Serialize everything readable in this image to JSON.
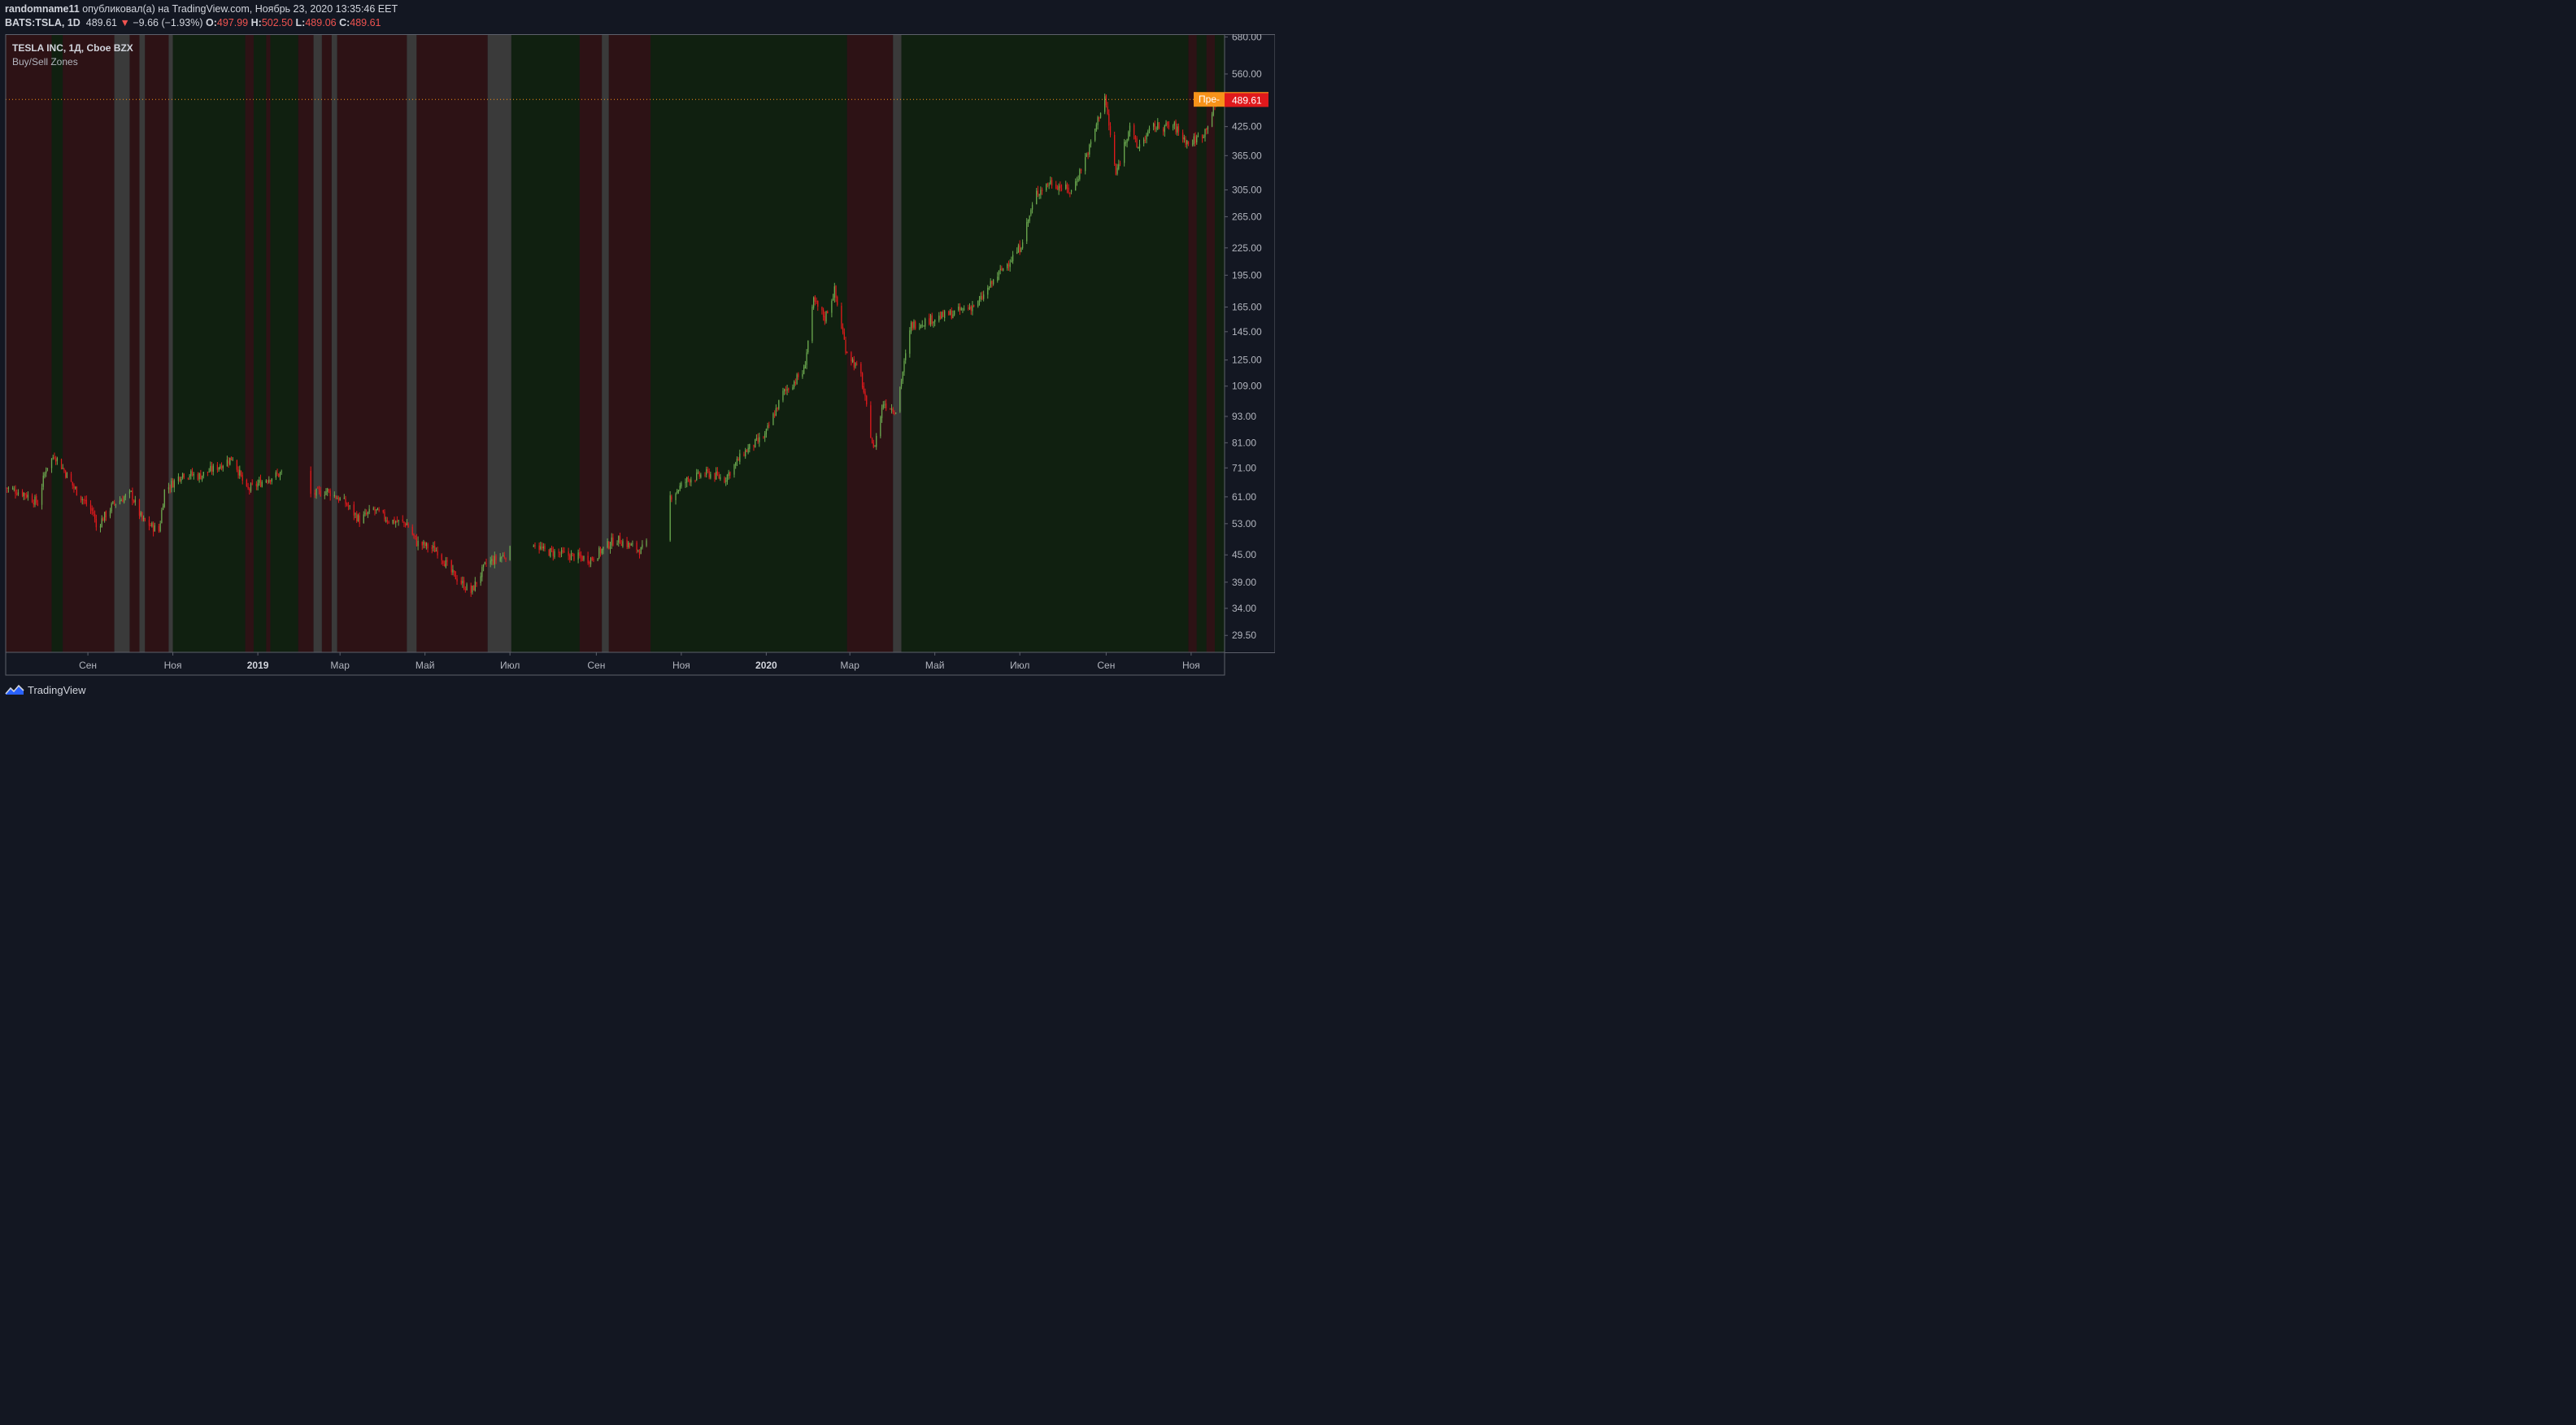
{
  "header": {
    "user": "randomname11",
    "publish_text": " опубликовал(а) на TradingView.com, Ноябрь 23, 2020 13:35:46 EET",
    "symbol": "BATS:TSLA, 1D",
    "last": "489.61",
    "change_arrow": "▼",
    "change": "−9.66 (−1.93%)",
    "o_label": "O:",
    "o_value": "497.99",
    "h_label": "H:",
    "h_value": "502.50",
    "l_label": "L:",
    "l_value": "489.06",
    "c_label": "C:",
    "c_value": "489.61"
  },
  "legend": {
    "title": "TESLA INC, 1Д, Cboe BZX",
    "indicator": "Buy/Sell Zones"
  },
  "footer": {
    "brand": "TradingView"
  },
  "colors": {
    "background": "#131722",
    "up": "#6aa84f",
    "down": "#e0191c",
    "zone_buy": "#102010",
    "zone_sell": "#2d1215",
    "zone_neutral": "#3a3a3a",
    "last_price": "#e0191c",
    "prev_close": "#f7931a",
    "axis_text": "#b2b5be"
  },
  "chart_data": {
    "type": "candlestick",
    "title": "TESLA INC, 1Д, Cboe BZX",
    "y_scale": "log",
    "ylim": [
      27,
      690
    ],
    "x_range": [
      "2018-07-04",
      "2020-11-25"
    ],
    "y_ticks": [
      "680.00",
      "560.00",
      "425.00",
      "365.00",
      "305.00",
      "265.00",
      "225.00",
      "195.00",
      "165.00",
      "145.00",
      "125.00",
      "109.00",
      "93.00",
      "81.00",
      "71.00",
      "61.00",
      "53.00",
      "45.00",
      "39.00",
      "34.00",
      "29.50"
    ],
    "x_ticks": [
      {
        "label": "Сен",
        "date": "2018-09-01",
        "bold": false
      },
      {
        "label": "Ноя",
        "date": "2018-11-01",
        "bold": false
      },
      {
        "label": "2019",
        "date": "2019-01-01",
        "bold": true
      },
      {
        "label": "Мар",
        "date": "2019-03-01",
        "bold": false
      },
      {
        "label": "Май",
        "date": "2019-05-01",
        "bold": false
      },
      {
        "label": "Июл",
        "date": "2019-07-01",
        "bold": false
      },
      {
        "label": "Сен",
        "date": "2019-09-01",
        "bold": false
      },
      {
        "label": "Ноя",
        "date": "2019-11-01",
        "bold": false
      },
      {
        "label": "2020",
        "date": "2020-01-01",
        "bold": true
      },
      {
        "label": "Мар",
        "date": "2020-03-01",
        "bold": false
      },
      {
        "label": "Май",
        "date": "2020-05-01",
        "bold": false
      },
      {
        "label": "Июл",
        "date": "2020-07-01",
        "bold": false
      },
      {
        "label": "Сен",
        "date": "2020-09-01",
        "bold": false
      },
      {
        "label": "Ноя",
        "date": "2020-11-01",
        "bold": false
      }
    ],
    "price_path": [
      [
        "2018-07-04",
        64
      ],
      [
        "2018-07-18",
        62
      ],
      [
        "2018-07-27",
        59
      ],
      [
        "2018-08-02",
        71
      ],
      [
        "2018-08-08",
        76
      ],
      [
        "2018-08-15",
        70
      ],
      [
        "2018-08-22",
        64
      ],
      [
        "2018-09-05",
        56
      ],
      [
        "2018-09-07",
        52
      ],
      [
        "2018-09-20",
        59
      ],
      [
        "2018-10-02",
        62
      ],
      [
        "2018-10-10",
        54
      ],
      [
        "2018-10-22",
        51
      ],
      [
        "2018-10-26",
        63
      ],
      [
        "2018-11-08",
        69
      ],
      [
        "2018-11-20",
        68
      ],
      [
        "2018-12-05",
        72
      ],
      [
        "2018-12-14",
        75
      ],
      [
        "2018-12-24",
        63
      ],
      [
        "2019-01-07",
        67
      ],
      [
        "2019-01-18",
        69
      ],
      [
        "2019-01-22",
        63
      ],
      [
        "2019-02-01",
        61
      ],
      [
        "2019-02-20",
        63
      ],
      [
        "2019-03-05",
        59
      ],
      [
        "2019-03-15",
        54
      ],
      [
        "2019-03-25",
        57
      ],
      [
        "2019-04-05",
        54
      ],
      [
        "2019-04-18",
        53
      ],
      [
        "2019-04-25",
        48
      ],
      [
        "2019-05-10",
        46
      ],
      [
        "2019-05-20",
        41
      ],
      [
        "2019-06-03",
        37
      ],
      [
        "2019-06-14",
        43
      ],
      [
        "2019-06-28",
        45
      ],
      [
        "2019-07-12",
        50
      ],
      [
        "2019-07-25",
        46
      ],
      [
        "2019-08-10",
        45
      ],
      [
        "2019-08-28",
        44
      ],
      [
        "2019-09-15",
        49
      ],
      [
        "2019-10-03",
        46
      ],
      [
        "2019-10-18",
        52
      ],
      [
        "2019-10-24",
        61
      ],
      [
        "2019-11-06",
        67
      ],
      [
        "2019-11-20",
        69
      ],
      [
        "2019-12-02",
        67
      ],
      [
        "2019-12-16",
        77
      ],
      [
        "2019-12-31",
        84
      ],
      [
        "2020-01-13",
        105
      ],
      [
        "2020-01-28",
        118
      ],
      [
        "2020-02-04",
        170
      ],
      [
        "2020-02-12",
        156
      ],
      [
        "2020-02-19",
        180
      ],
      [
        "2020-02-27",
        133
      ],
      [
        "2020-03-09",
        115
      ],
      [
        "2020-03-18",
        78
      ],
      [
        "2020-03-25",
        100
      ],
      [
        "2020-04-03",
        96
      ],
      [
        "2020-04-14",
        150
      ],
      [
        "2020-04-29",
        155
      ],
      [
        "2020-05-15",
        160
      ],
      [
        "2020-06-01",
        168
      ],
      [
        "2020-06-15",
        195
      ],
      [
        "2020-07-01",
        225
      ],
      [
        "2020-07-13",
        300
      ],
      [
        "2020-07-23",
        318
      ],
      [
        "2020-08-07",
        302
      ],
      [
        "2020-08-20",
        380
      ],
      [
        "2020-08-31",
        498
      ],
      [
        "2020-09-08",
        330
      ],
      [
        "2020-09-18",
        430
      ],
      [
        "2020-09-23",
        380
      ],
      [
        "2020-10-05",
        425
      ],
      [
        "2020-10-20",
        425
      ],
      [
        "2020-10-30",
        388
      ],
      [
        "2020-11-10",
        410
      ],
      [
        "2020-11-20",
        489.61
      ]
    ],
    "gaps": [
      [
        "2019-01-21",
        "2019-02-07"
      ],
      [
        "2019-07-02",
        "2019-07-17"
      ],
      [
        "2019-10-08",
        "2019-10-23"
      ]
    ],
    "last_price": "489.61",
    "prev_close": "490.15",
    "prev_close_tag": "Пре-",
    "zones": [
      [
        "2018-07-04",
        "2018-08-06",
        "sell"
      ],
      [
        "2018-08-06",
        "2018-08-14",
        "buy"
      ],
      [
        "2018-08-14",
        "2018-09-20",
        "sell"
      ],
      [
        "2018-09-20",
        "2018-10-01",
        "neutral"
      ],
      [
        "2018-10-01",
        "2018-10-08",
        "sell"
      ],
      [
        "2018-10-08",
        "2018-10-12",
        "neutral"
      ],
      [
        "2018-10-12",
        "2018-10-29",
        "sell"
      ],
      [
        "2018-10-29",
        "2018-11-01",
        "neutral"
      ],
      [
        "2018-11-01",
        "2018-12-23",
        "buy"
      ],
      [
        "2018-12-23",
        "2018-12-29",
        "sell"
      ],
      [
        "2018-12-29",
        "2019-01-07",
        "buy"
      ],
      [
        "2019-01-07",
        "2019-01-10",
        "sell"
      ],
      [
        "2019-01-10",
        "2019-01-30",
        "buy"
      ],
      [
        "2019-01-30",
        "2019-02-10",
        "sell"
      ],
      [
        "2019-02-10",
        "2019-02-16",
        "neutral"
      ],
      [
        "2019-02-16",
        "2019-02-23",
        "sell"
      ],
      [
        "2019-02-23",
        "2019-02-27",
        "neutral"
      ],
      [
        "2019-02-27",
        "2019-04-18",
        "sell"
      ],
      [
        "2019-04-18",
        "2019-04-25",
        "neutral"
      ],
      [
        "2019-04-25",
        "2019-06-15",
        "sell"
      ],
      [
        "2019-06-15",
        "2019-07-02",
        "neutral"
      ],
      [
        "2019-07-02",
        "2019-08-20",
        "buy"
      ],
      [
        "2019-08-20",
        "2019-09-05",
        "sell"
      ],
      [
        "2019-09-05",
        "2019-09-10",
        "neutral"
      ],
      [
        "2019-09-10",
        "2019-10-10",
        "sell"
      ],
      [
        "2019-10-10",
        "2020-02-28",
        "buy"
      ],
      [
        "2020-02-28",
        "2020-04-01",
        "sell"
      ],
      [
        "2020-04-01",
        "2020-04-07",
        "neutral"
      ],
      [
        "2020-04-07",
        "2020-10-30",
        "buy"
      ],
      [
        "2020-10-30",
        "2020-11-05",
        "sell"
      ],
      [
        "2020-11-05",
        "2020-11-12",
        "buy"
      ],
      [
        "2020-11-12",
        "2020-11-18",
        "sell"
      ],
      [
        "2020-11-18",
        "2020-11-25",
        "buy"
      ]
    ]
  }
}
